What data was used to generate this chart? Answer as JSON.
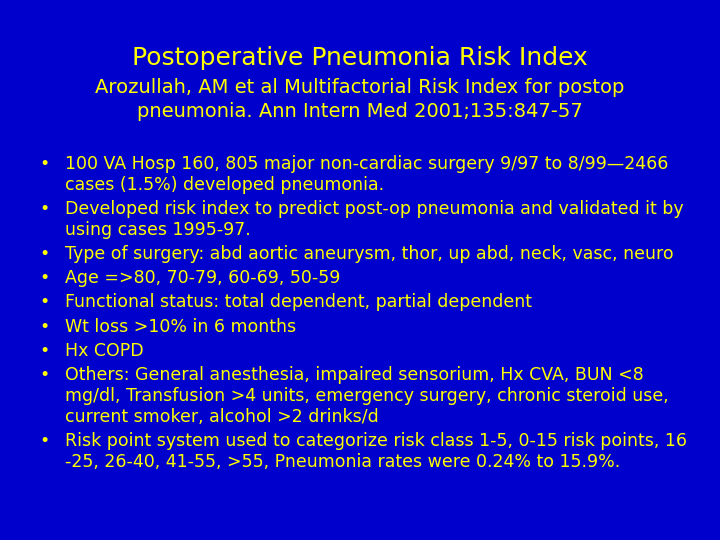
{
  "title": "Postoperative Pneumonia Risk Index",
  "subtitle": "Arozullah, AM et al Multifactorial Risk Index for postop\npneumonia. Ann Intern Med 2001;135:847-57",
  "title_color": "#FFFF00",
  "subtitle_color": "#FFFF00",
  "text_color": "#FFFF00",
  "bg_color": "#0000CC",
  "title_fontsize": 18,
  "subtitle_fontsize": 14,
  "bullet_fontsize": 12.5,
  "bullets": [
    "100 VA Hosp 160, 805 major non-cardiac surgery 9/97 to 8/99—2466\ncases (1.5%) developed pneumonia.",
    "Developed risk index to predict post-op pneumonia and validated it by\nusing cases 1995-97.",
    "Type of surgery: abd aortic aneurysm, thor, up abd, neck, vasc, neuro",
    "Age =>80, 70-79, 60-69, 50-59",
    "Functional status: total dependent, partial dependent",
    "Wt loss >10% in 6 months",
    "Hx COPD",
    "Others: General anesthesia, impaired sensorium, Hx CVA, BUN <8\nmg/dl, Transfusion >4 units, emergency surgery, chronic steroid use,\ncurrent smoker, alcohol >2 drinks/d",
    "Risk point system used to categorize risk class 1-5, 0-15 risk points, 16\n-25, 26-40, 41-55, >55, Pneumonia rates were 0.24% to 15.9%."
  ],
  "bullet_line_heights": [
    2,
    2,
    1,
    1,
    1,
    1,
    1,
    3,
    2
  ],
  "fig_width": 7.2,
  "fig_height": 5.4,
  "dpi": 100
}
